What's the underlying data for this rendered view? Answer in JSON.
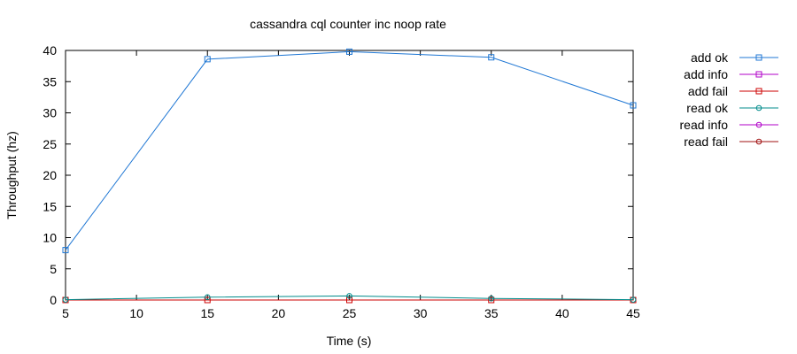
{
  "chart_data": {
    "type": "line",
    "title": "cassandra cql counter inc noop rate",
    "xlabel": "Time (s)",
    "ylabel": "Throughput (hz)",
    "xlim": [
      5,
      45
    ],
    "ylim": [
      0,
      40
    ],
    "xticks": [
      5,
      10,
      15,
      20,
      25,
      30,
      35,
      40,
      45
    ],
    "yticks": [
      0,
      5,
      10,
      15,
      20,
      25,
      30,
      35,
      40
    ],
    "grid": false,
    "legend_position": "right",
    "series": [
      {
        "name": "add ok",
        "color": "#1f77d4",
        "marker": "square",
        "x": [
          5,
          15,
          25,
          35,
          45
        ],
        "y": [
          8,
          38.6,
          39.8,
          38.9,
          31.2
        ]
      },
      {
        "name": "add info",
        "color": "#b000c8",
        "marker": "square",
        "x": [],
        "y": []
      },
      {
        "name": "add fail",
        "color": "#cc0000",
        "marker": "square",
        "x": [
          5,
          15,
          25,
          35,
          45
        ],
        "y": [
          0,
          0,
          0,
          0,
          0
        ]
      },
      {
        "name": "read ok",
        "color": "#008b8b",
        "marker": "circle",
        "x": [
          5,
          15,
          25,
          35,
          45
        ],
        "y": [
          0.05,
          0.45,
          0.65,
          0.25,
          0.05
        ]
      },
      {
        "name": "read info",
        "color": "#b000c8",
        "marker": "circle",
        "x": [],
        "y": []
      },
      {
        "name": "read fail",
        "color": "#a01010",
        "marker": "circle",
        "x": [],
        "y": []
      }
    ]
  }
}
